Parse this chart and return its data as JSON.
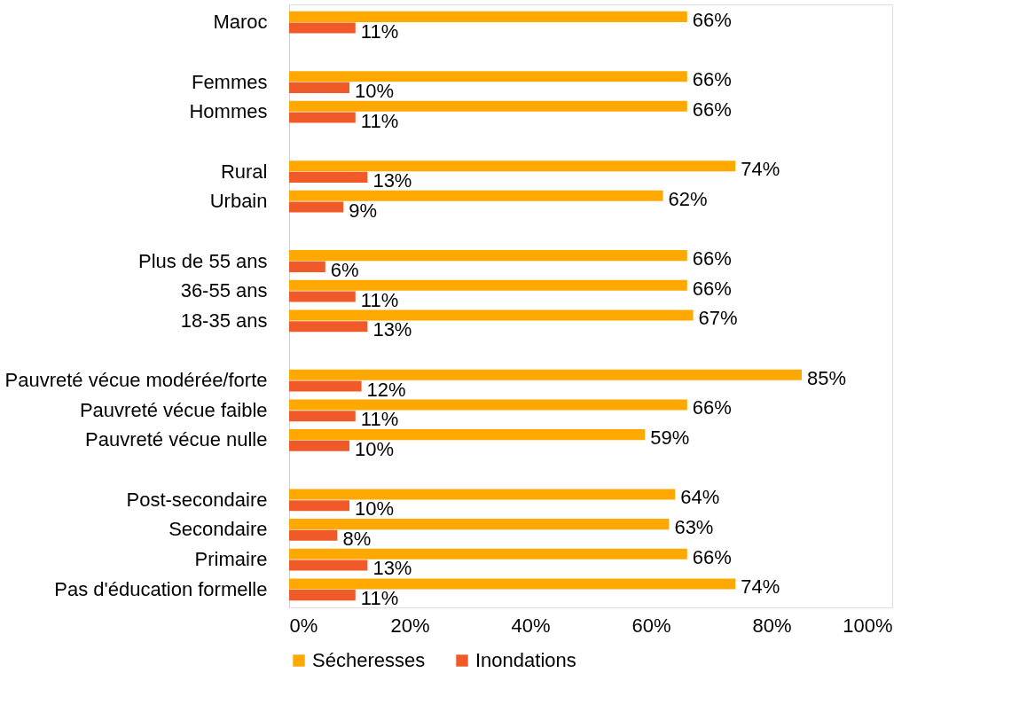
{
  "chart_data": {
    "type": "bar",
    "orientation": "horizontal",
    "categories": [
      "Maroc",
      null,
      "Femmes",
      "Hommes",
      null,
      "Rural",
      "Urbain",
      null,
      "Plus de 55 ans",
      "36-55 ans",
      "18-35 ans",
      null,
      "Pauvreté vécue modérée/forte",
      "Pauvreté vécue faible",
      "Pauvreté vécue nulle",
      null,
      "Post-secondaire",
      "Secondaire",
      "Primaire",
      "Pas d'éducation formelle"
    ],
    "series": [
      {
        "name": "Sécheresses",
        "color": "#ffa800",
        "values": [
          66,
          null,
          66,
          66,
          null,
          74,
          62,
          null,
          66,
          66,
          67,
          null,
          85,
          66,
          59,
          null,
          64,
          63,
          66,
          74
        ],
        "value_labels": [
          "66%",
          null,
          "66%",
          "66%",
          null,
          "74%",
          "62%",
          null,
          "66%",
          "66%",
          "67%",
          null,
          "85%",
          "66%",
          "59%",
          null,
          "64%",
          "63%",
          "66%",
          "74%"
        ]
      },
      {
        "name": "Inondations",
        "color": "#f05a28",
        "values": [
          11,
          null,
          10,
          11,
          null,
          13,
          9,
          null,
          6,
          11,
          13,
          null,
          12,
          11,
          10,
          null,
          10,
          8,
          13,
          11
        ],
        "value_labels": [
          "11%",
          null,
          "10%",
          "11%",
          null,
          "13%",
          "9%",
          null,
          "6%",
          "11%",
          "13%",
          null,
          "12%",
          "11%",
          "10%",
          null,
          "10%",
          "8%",
          "13%",
          "11%"
        ]
      }
    ],
    "xlim": [
      0,
      100
    ],
    "xticks": [
      {
        "value": 0,
        "label": "0%"
      },
      {
        "value": 20,
        "label": "20%"
      },
      {
        "value": 40,
        "label": "40%"
      },
      {
        "value": 60,
        "label": "60%"
      },
      {
        "value": 80,
        "label": "80%"
      },
      {
        "value": 100,
        "label": "100%"
      }
    ],
    "grid": false,
    "legend": "bottom"
  }
}
